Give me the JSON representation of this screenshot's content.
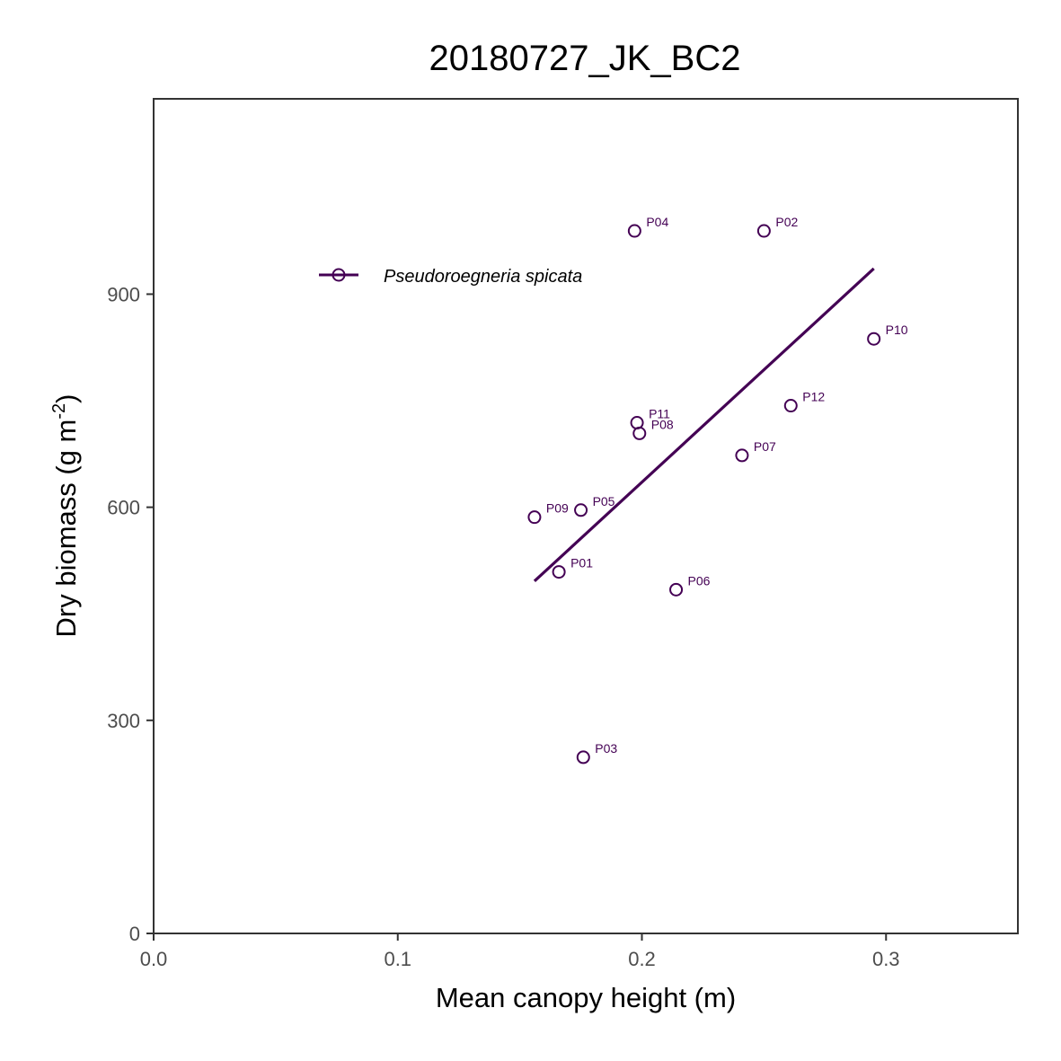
{
  "chart_data": {
    "type": "scatter",
    "title": "20180727_JK_BC2",
    "xlabel": "Mean canopy height (m)",
    "ylabel": "Dry biomass (g m-2)",
    "ylabel_main": "Dry biomass (g m",
    "ylabel_sup": "-2",
    "ylabel_close": ")",
    "xlim": [
      0,
      0.354
    ],
    "ylim": [
      0,
      1175
    ],
    "x_ticks": [
      {
        "value": 0.0,
        "label": "0.0"
      },
      {
        "value": 0.1,
        "label": "0.1"
      },
      {
        "value": 0.2,
        "label": "0.2"
      },
      {
        "value": 0.3,
        "label": "0.3"
      }
    ],
    "y_ticks": [
      {
        "value": 0,
        "label": "0"
      },
      {
        "value": 300,
        "label": "300"
      },
      {
        "value": 600,
        "label": "600"
      },
      {
        "value": 900,
        "label": "900"
      }
    ],
    "grid": false,
    "legend": {
      "position": "top-left",
      "entries": [
        "Pseudoroegneria spicata"
      ]
    },
    "series": [
      {
        "name": "Pseudoroegneria spicata",
        "color": "#440154",
        "points": [
          {
            "label": "P01",
            "x": 0.166,
            "y": 509
          },
          {
            "label": "P02",
            "x": 0.25,
            "y": 989
          },
          {
            "label": "P03",
            "x": 0.176,
            "y": 248
          },
          {
            "label": "P04",
            "x": 0.197,
            "y": 989
          },
          {
            "label": "P05",
            "x": 0.175,
            "y": 596
          },
          {
            "label": "P06",
            "x": 0.214,
            "y": 484
          },
          {
            "label": "P07",
            "x": 0.241,
            "y": 673
          },
          {
            "label": "P08",
            "x": 0.199,
            "y": 704
          },
          {
            "label": "P09",
            "x": 0.156,
            "y": 586
          },
          {
            "label": "P10",
            "x": 0.295,
            "y": 837
          },
          {
            "label": "P11",
            "x": 0.198,
            "y": 719
          },
          {
            "label": "P12",
            "x": 0.261,
            "y": 743
          }
        ],
        "fit_line": [
          {
            "x": 0.156,
            "y": 496
          },
          {
            "x": 0.295,
            "y": 936
          }
        ]
      }
    ]
  }
}
